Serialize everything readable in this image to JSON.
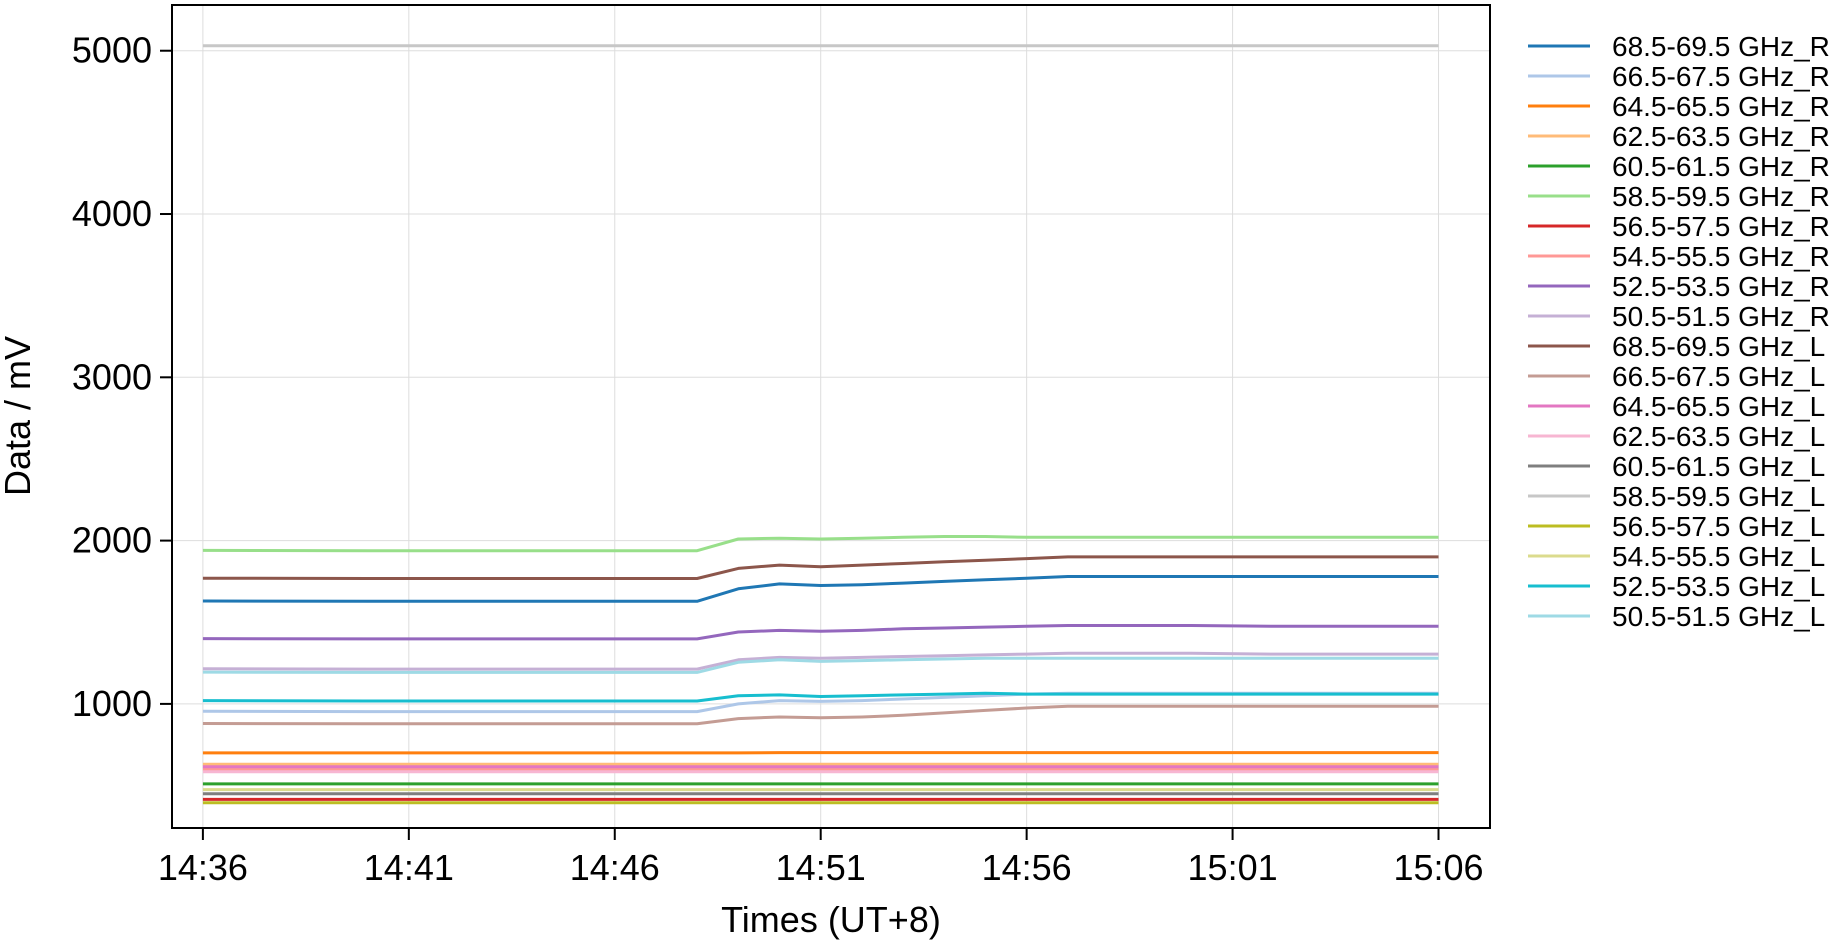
{
  "chart_data": {
    "type": "line",
    "title": "",
    "xlabel": "Times (UT+8)",
    "ylabel": "Data / mV",
    "grid": true,
    "legend_position": "outside-right",
    "xlim": [
      "14:35:15",
      "15:07:15"
    ],
    "ylim": [
      240,
      5280
    ],
    "x_ticks": [
      "14:36",
      "14:41",
      "14:46",
      "14:51",
      "14:56",
      "15:01",
      "15:06"
    ],
    "y_ticks": [
      1000,
      2000,
      3000,
      4000,
      5000
    ],
    "x": [
      "14:36",
      "14:40",
      "14:44",
      "14:48",
      "14:49",
      "14:50",
      "14:51",
      "14:52",
      "14:53",
      "14:54",
      "14:55",
      "14:56",
      "14:57",
      "14:58",
      "15:00",
      "15:02",
      "15:04",
      "15:06"
    ],
    "series": [
      {
        "name": "68.5-69.5 GHz_R",
        "color": "#1f77b4",
        "values": [
          1630,
          1628,
          1628,
          1628,
          1705,
          1735,
          1725,
          1730,
          1740,
          1750,
          1760,
          1770,
          1780,
          1780,
          1780,
          1780,
          1780,
          1780
        ]
      },
      {
        "name": "66.5-67.5 GHz_R",
        "color": "#aec7e8",
        "values": [
          955,
          953,
          953,
          953,
          1000,
          1020,
          1015,
          1020,
          1030,
          1040,
          1050,
          1060,
          1065,
          1065,
          1065,
          1065,
          1065,
          1065
        ]
      },
      {
        "name": "64.5-65.5 GHz_R",
        "color": "#ff7f0e",
        "values": [
          700,
          700,
          700,
          700,
          700,
          702,
          702,
          702,
          702,
          702,
          702,
          702,
          702,
          702,
          702,
          702,
          702,
          702
        ]
      },
      {
        "name": "62.5-63.5 GHz_R",
        "color": "#ffbb78",
        "values": [
          630,
          630,
          630,
          630,
          630,
          630,
          630,
          630,
          630,
          630,
          630,
          630,
          630,
          630,
          630,
          630,
          630,
          630
        ]
      },
      {
        "name": "60.5-61.5 GHz_R",
        "color": "#2ca02c",
        "values": [
          510,
          510,
          510,
          510,
          510,
          510,
          510,
          510,
          510,
          510,
          510,
          510,
          510,
          510,
          510,
          510,
          510,
          510
        ]
      },
      {
        "name": "58.5-59.5 GHz_R",
        "color": "#98df8a",
        "values": [
          1940,
          1938,
          1938,
          1938,
          2010,
          2015,
          2010,
          2015,
          2020,
          2025,
          2025,
          2020,
          2020,
          2020,
          2020,
          2020,
          2020,
          2020
        ]
      },
      {
        "name": "56.5-57.5 GHz_R",
        "color": "#d62728",
        "values": [
          415,
          415,
          415,
          415,
          415,
          415,
          415,
          415,
          415,
          415,
          415,
          415,
          415,
          415,
          415,
          415,
          415,
          415
        ]
      },
      {
        "name": "54.5-55.5 GHz_R",
        "color": "#ff9896",
        "values": [
          600,
          600,
          600,
          600,
          600,
          600,
          600,
          600,
          600,
          600,
          600,
          600,
          600,
          600,
          600,
          600,
          600,
          600
        ]
      },
      {
        "name": "52.5-53.5 GHz_R",
        "color": "#9467bd",
        "values": [
          1400,
          1398,
          1398,
          1398,
          1440,
          1450,
          1445,
          1450,
          1460,
          1465,
          1470,
          1475,
          1480,
          1480,
          1480,
          1475,
          1475,
          1475
        ]
      },
      {
        "name": "50.5-51.5 GHz_R",
        "color": "#c5b0d5",
        "values": [
          1215,
          1213,
          1213,
          1213,
          1270,
          1285,
          1280,
          1285,
          1290,
          1295,
          1300,
          1305,
          1310,
          1310,
          1310,
          1305,
          1305,
          1305
        ]
      },
      {
        "name": "68.5-69.5 GHz_L",
        "color": "#8c564b",
        "values": [
          1770,
          1768,
          1768,
          1768,
          1830,
          1850,
          1840,
          1850,
          1860,
          1870,
          1880,
          1890,
          1900,
          1900,
          1900,
          1900,
          1900,
          1900
        ]
      },
      {
        "name": "66.5-67.5 GHz_L",
        "color": "#c49c94",
        "values": [
          880,
          878,
          878,
          878,
          910,
          920,
          915,
          920,
          930,
          945,
          960,
          975,
          985,
          985,
          985,
          985,
          985,
          985
        ]
      },
      {
        "name": "64.5-65.5 GHz_L",
        "color": "#e377c2",
        "values": [
          615,
          615,
          615,
          615,
          615,
          615,
          615,
          615,
          615,
          615,
          615,
          615,
          615,
          615,
          615,
          615,
          615,
          615
        ]
      },
      {
        "name": "62.5-63.5 GHz_L",
        "color": "#f7b6d2",
        "values": [
          585,
          585,
          585,
          585,
          585,
          585,
          585,
          585,
          585,
          585,
          585,
          585,
          585,
          585,
          585,
          585,
          585,
          585
        ]
      },
      {
        "name": "60.5-61.5 GHz_L",
        "color": "#7f7f7f",
        "values": [
          450,
          450,
          450,
          450,
          450,
          450,
          450,
          450,
          450,
          450,
          450,
          450,
          450,
          450,
          450,
          450,
          450,
          450
        ]
      },
      {
        "name": "58.5-59.5 GHz_L",
        "color": "#c7c7c7",
        "values": [
          5030,
          5030,
          5030,
          5030,
          5030,
          5030,
          5030,
          5030,
          5030,
          5030,
          5030,
          5030,
          5030,
          5030,
          5030,
          5030,
          5030,
          5030
        ]
      },
      {
        "name": "56.5-57.5 GHz_L",
        "color": "#bcbd22",
        "values": [
          395,
          395,
          395,
          395,
          395,
          395,
          395,
          395,
          395,
          395,
          395,
          395,
          395,
          395,
          395,
          395,
          395,
          395
        ]
      },
      {
        "name": "54.5-55.5 GHz_L",
        "color": "#dbdb8d",
        "values": [
          475,
          475,
          475,
          475,
          475,
          475,
          475,
          475,
          475,
          475,
          475,
          475,
          475,
          475,
          475,
          475,
          475,
          475
        ]
      },
      {
        "name": "52.5-53.5 GHz_L",
        "color": "#17becf",
        "values": [
          1020,
          1018,
          1018,
          1018,
          1050,
          1055,
          1045,
          1050,
          1055,
          1060,
          1065,
          1060,
          1060,
          1060,
          1060,
          1060,
          1060,
          1060
        ]
      },
      {
        "name": "50.5-51.5 GHz_L",
        "color": "#9edae5",
        "values": [
          1195,
          1193,
          1193,
          1193,
          1255,
          1270,
          1260,
          1265,
          1270,
          1275,
          1280,
          1280,
          1280,
          1280,
          1280,
          1280,
          1280,
          1280
        ]
      }
    ]
  }
}
